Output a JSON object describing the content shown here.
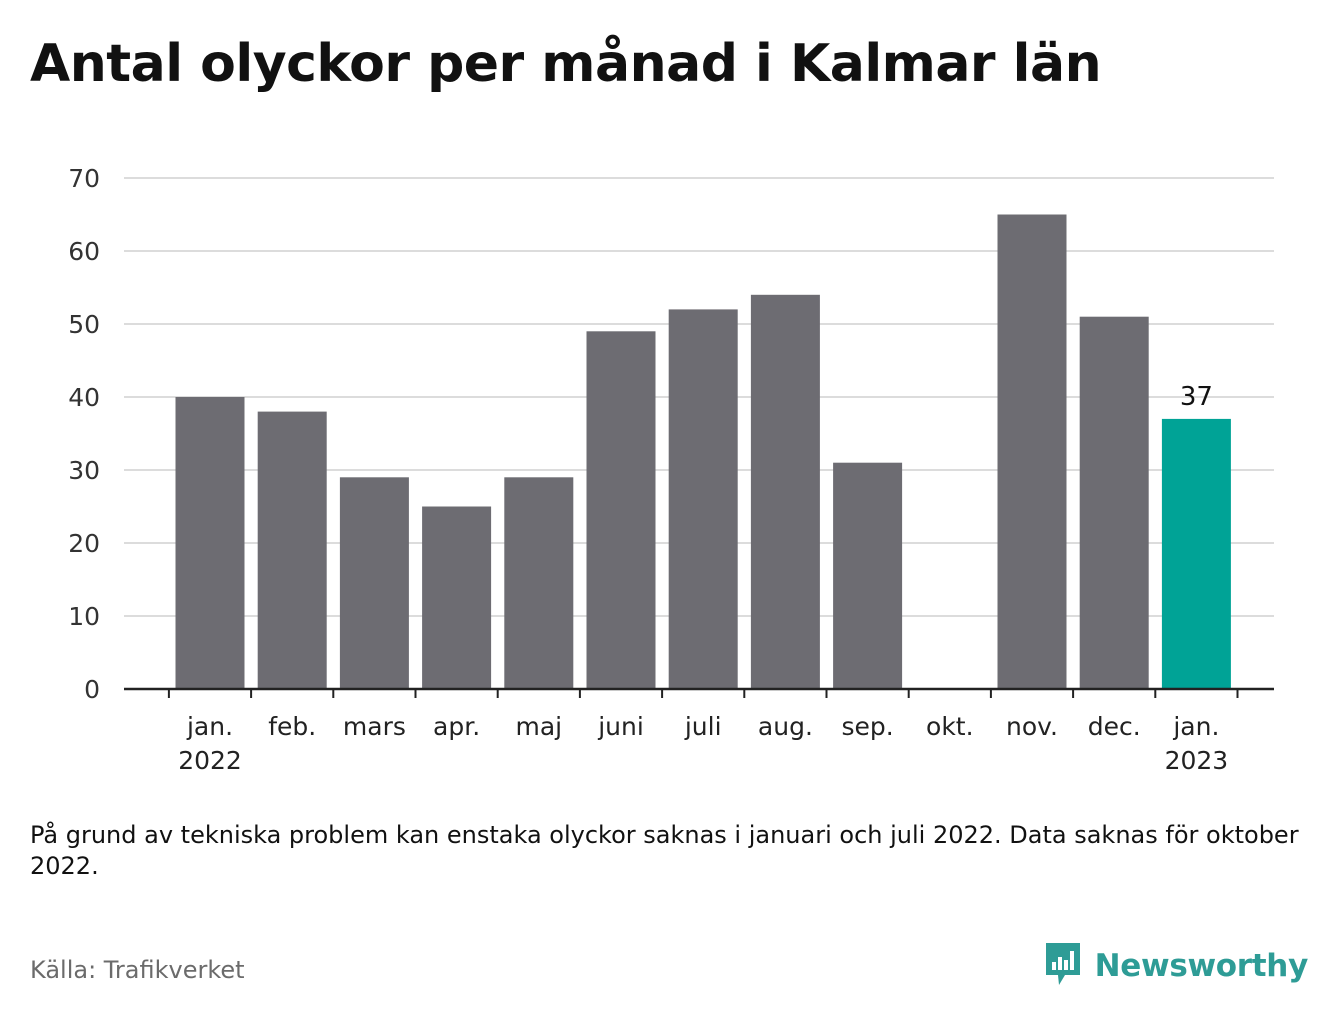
{
  "title": "Antal olyckor per månad i Kalmar län",
  "note": "På grund av tekniska problem kan enstaka olyckor saknas i januari och juli 2022. Data saknas för oktober 2022.",
  "source": "Källa: Trafikverket",
  "brand": {
    "name": "Newsworthy",
    "icon": "newsworthy-logo-icon",
    "color": "#2e9c96"
  },
  "colors": {
    "bar": "#6d6c72",
    "highlight": "#00a396",
    "grid": "#dcdcdc",
    "axis": "#222222"
  },
  "chart_data": {
    "type": "bar",
    "categories": [
      "jan.",
      "feb.",
      "mars",
      "apr.",
      "maj",
      "juni",
      "juli",
      "aug.",
      "sep.",
      "okt.",
      "nov.",
      "dec.",
      "jan."
    ],
    "sublabels": [
      "2022",
      "",
      "",
      "",
      "",
      "",
      "",
      "",
      "",
      "",
      "",
      "",
      "2023"
    ],
    "values": [
      40,
      38,
      29,
      25,
      29,
      49,
      52,
      54,
      31,
      null,
      65,
      51,
      37
    ],
    "highlight_index": 12,
    "data_labels": [
      {
        "index": 12,
        "text": "37"
      }
    ],
    "yticks": [
      0,
      10,
      20,
      30,
      40,
      50,
      60,
      70
    ],
    "ylim": [
      0,
      70
    ],
    "xlabel": "",
    "ylabel": "",
    "grid": true,
    "legend": "none"
  }
}
